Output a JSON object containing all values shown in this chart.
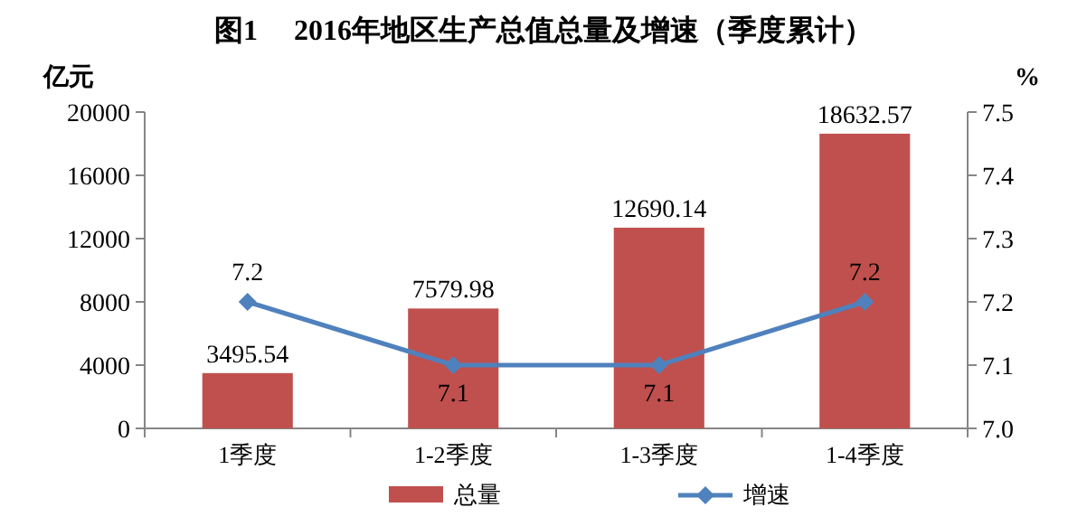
{
  "chart_data": {
    "type": "bar",
    "title": "图1　 2016年地区生产总值总量及增速（季度累计）",
    "ylabel": "亿元",
    "y2label": "%",
    "categories": [
      "1季度",
      "1-2季度",
      "1-3季度",
      "1-4季度"
    ],
    "series": [
      {
        "name": "总量",
        "color": "#c0504d",
        "values": [
          3495.54,
          7579.98,
          12690.14,
          18632.57
        ]
      },
      {
        "name": "增速",
        "type": "line",
        "axis": "y2",
        "color": "#4f81bd",
        "values": [
          7.2,
          7.1,
          7.1,
          7.2
        ]
      }
    ],
    "ylim": [
      0,
      20000
    ],
    "yticks": [
      0,
      4000,
      8000,
      12000,
      16000,
      20000
    ],
    "y2lim": [
      7.0,
      7.5
    ],
    "y2ticks": [
      {
        "value": 7.0,
        "label": "7.0"
      },
      7.1,
      7.2,
      7.3,
      7.4,
      7.5
    ],
    "marker": "diamond",
    "data_labels": true,
    "legend": "bottom",
    "grid": false
  }
}
